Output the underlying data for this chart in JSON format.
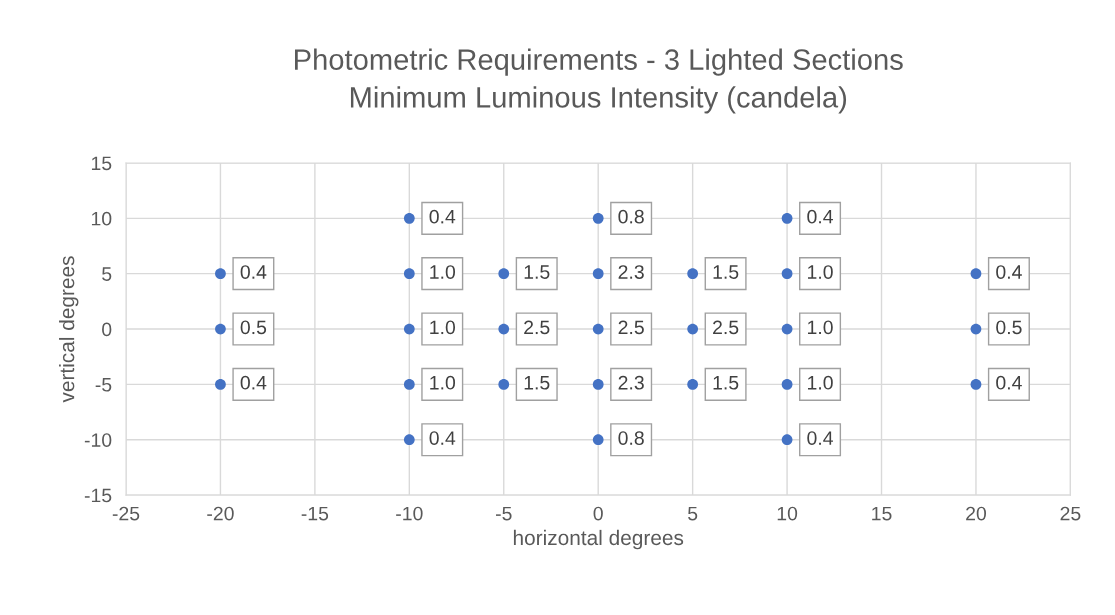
{
  "chart_data": {
    "type": "scatter",
    "title": "Photometric Requirements - 3 Lighted Sections\nMinimum Luminous Intensity (candela)",
    "xlabel": "horizontal degrees",
    "ylabel": "vertical degrees",
    "x": [
      -20,
      -20,
      -20,
      -10,
      -10,
      -10,
      -10,
      -10,
      -5,
      -5,
      -5,
      0,
      0,
      0,
      0,
      0,
      5,
      5,
      5,
      10,
      10,
      10,
      10,
      10,
      20,
      20,
      20
    ],
    "values": [
      5,
      0,
      -5,
      10,
      5,
      0,
      -5,
      -10,
      5,
      0,
      -5,
      10,
      5,
      0,
      -5,
      -10,
      5,
      0,
      -5,
      10,
      5,
      0,
      -5,
      -10,
      5,
      0,
      -5
    ],
    "annotations": [
      {
        "text": "0.4",
        "x": -20,
        "y": 5
      },
      {
        "text": "0.5",
        "x": -20,
        "y": 0
      },
      {
        "text": "0.4",
        "x": -20,
        "y": -5
      },
      {
        "text": "0.4",
        "x": -10,
        "y": 10
      },
      {
        "text": "1.0",
        "x": -10,
        "y": 5
      },
      {
        "text": "1.0",
        "x": -10,
        "y": 0
      },
      {
        "text": "1.0",
        "x": -10,
        "y": -5
      },
      {
        "text": "0.4",
        "x": -10,
        "y": -10
      },
      {
        "text": "1.5",
        "x": -5,
        "y": 5
      },
      {
        "text": "2.5",
        "x": -5,
        "y": 0
      },
      {
        "text": "1.5",
        "x": -5,
        "y": -5
      },
      {
        "text": "0.8",
        "x": 0,
        "y": 10
      },
      {
        "text": "2.3",
        "x": 0,
        "y": 5
      },
      {
        "text": "2.5",
        "x": 0,
        "y": 0
      },
      {
        "text": "2.3",
        "x": 0,
        "y": -5
      },
      {
        "text": "0.8",
        "x": 0,
        "y": -10
      },
      {
        "text": "1.5",
        "x": 5,
        "y": 5
      },
      {
        "text": "2.5",
        "x": 5,
        "y": 0
      },
      {
        "text": "1.5",
        "x": 5,
        "y": -5
      },
      {
        "text": "0.4",
        "x": 10,
        "y": 10
      },
      {
        "text": "1.0",
        "x": 10,
        "y": 5
      },
      {
        "text": "1.0",
        "x": 10,
        "y": 0
      },
      {
        "text": "1.0",
        "x": 10,
        "y": -5
      },
      {
        "text": "0.4",
        "x": 10,
        "y": -10
      },
      {
        "text": "0.4",
        "x": 20,
        "y": 5
      },
      {
        "text": "0.5",
        "x": 20,
        "y": 0
      },
      {
        "text": "0.4",
        "x": 20,
        "y": -5
      }
    ],
    "color": "#4472c4",
    "marker": "circle",
    "xlim": [
      -25,
      25
    ],
    "xticks": [
      -25,
      -20,
      -15,
      -10,
      -5,
      0,
      5,
      10,
      15,
      20,
      25
    ],
    "ylim": [
      -15,
      15
    ],
    "yticks": [
      -15,
      -10,
      -5,
      0,
      5,
      10,
      15
    ],
    "grid": true
  }
}
